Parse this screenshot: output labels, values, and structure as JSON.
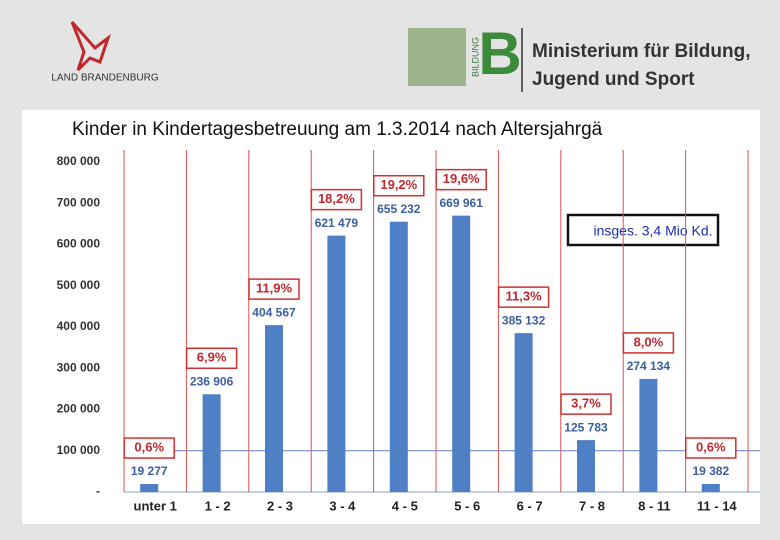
{
  "header": {
    "state_logo": "LAND BRANDENBURG",
    "ministry_mark": "BILDUNG",
    "ministry_letter": "B",
    "ministry_line1": "Ministerium für Bildung,",
    "ministry_line2": "Jugend und Sport"
  },
  "chart_data": {
    "type": "bar",
    "title": "Kinder in Kindertagesbetreuung am 1.3.2014 nach Altersjahrgä",
    "annotation": "insges. 3,4 Mio Kd.",
    "categories": [
      "unter 1",
      "1 - 2",
      "2 - 3",
      "3 - 4",
      "4 - 5",
      "5 - 6",
      "6 - 7",
      "7 - 8",
      "8 - 11",
      "11 - 14"
    ],
    "values": [
      19277,
      236906,
      404567,
      621479,
      655232,
      669961,
      385132,
      125783,
      274134,
      19382
    ],
    "value_labels": [
      "19 277",
      "236 906",
      "404 567",
      "621 479",
      "655 232",
      "669 961",
      "385 132",
      "125 783",
      "274 134",
      "19 382"
    ],
    "share_labels": [
      "0,6%",
      "6,9%",
      "11,9%",
      "18,2%",
      "19,2%",
      "19,6%",
      "11,3%",
      "3,7%",
      "8,0%",
      "0,6%"
    ],
    "color": "#4f7fc4",
    "ylim": [
      0,
      800000
    ],
    "yticks": [
      {
        "value": 0,
        "label": "-"
      },
      {
        "value": 100000,
        "label": "100 000"
      },
      {
        "value": 200000,
        "label": "200 000"
      },
      {
        "value": 300000,
        "label": "300 000"
      },
      {
        "value": 400000,
        "label": "400 000"
      },
      {
        "value": 500000,
        "label": "500 000"
      },
      {
        "value": 600000,
        "label": "600 000"
      },
      {
        "value": 700000,
        "label": "700 000"
      },
      {
        "value": 800000,
        "label": "800 000"
      }
    ]
  }
}
